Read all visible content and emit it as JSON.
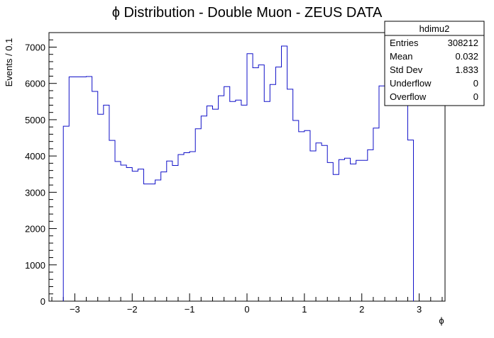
{
  "chart_data": {
    "type": "histogram",
    "title": "ϕ Distribution - Double Muon - ZEUS DATA",
    "xlabel": "ϕ",
    "ylabel": "Events / 0.1",
    "xlim": [
      -3.45,
      3.45
    ],
    "ylim": [
      0,
      7400
    ],
    "bin_width": 0.1,
    "x_ticks": [
      -3,
      -2,
      -1,
      0,
      1,
      2,
      3
    ],
    "x_tick_labels": [
      "−3",
      "−2",
      "−1",
      "0",
      "1",
      "2",
      "3"
    ],
    "y_ticks": [
      0,
      1000,
      2000,
      3000,
      4000,
      5000,
      6000,
      7000
    ],
    "y_tick_labels": [
      "0",
      "1000",
      "2000",
      "3000",
      "4000",
      "5000",
      "6000",
      "7000"
    ],
    "line_color": "#1010c8",
    "bin_edges_start": -3.2,
    "values": [
      4820,
      6180,
      6180,
      6180,
      6190,
      5780,
      5150,
      5400,
      4430,
      3850,
      3750,
      3680,
      3580,
      3640,
      3230,
      3230,
      3340,
      3560,
      3860,
      3740,
      4040,
      4090,
      4120,
      4750,
      5100,
      5380,
      5290,
      5660,
      5910,
      5500,
      5540,
      5400,
      6820,
      6430,
      6510,
      5500,
      5970,
      6450,
      7030,
      5840,
      4980,
      4670,
      4700,
      4140,
      4360,
      4290,
      3820,
      3490,
      3900,
      3940,
      3780,
      3880,
      3880,
      4170,
      4770,
      5930,
      5600,
      5620,
      5460,
      6180,
      4440
    ],
    "stats_box": {
      "name": "hdimu2",
      "rows": [
        {
          "label": "Entries",
          "value": "308212"
        },
        {
          "label": "Mean",
          "value": "0.032"
        },
        {
          "label": "Std Dev",
          "value": "1.833"
        },
        {
          "label": "Underflow",
          "value": "0"
        },
        {
          "label": "Overflow",
          "value": "0"
        }
      ]
    },
    "legend_placement": "top-right",
    "grid": false
  }
}
